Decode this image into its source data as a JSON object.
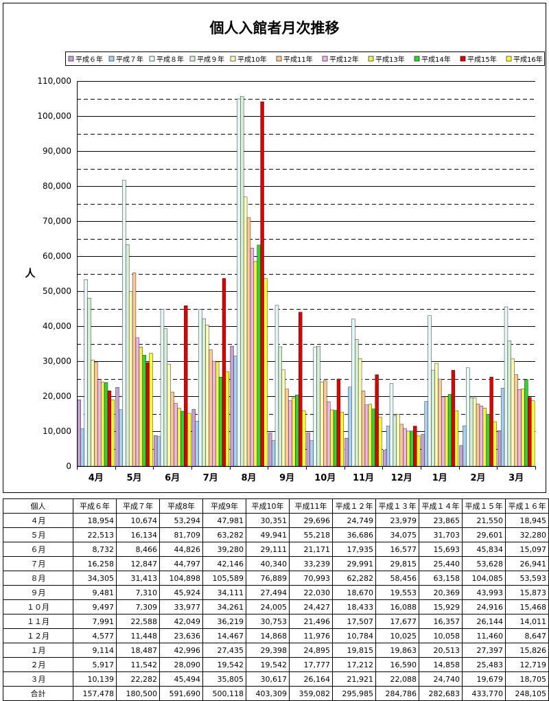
{
  "chart_data": {
    "type": "bar",
    "title": "個人入館者月次推移",
    "ylabel": "人",
    "xlabel": "",
    "ylim": [
      0,
      110000
    ],
    "yticks": [
      "0",
      "10,000",
      "20,000",
      "30,000",
      "40,000",
      "50,000",
      "60,000",
      "70,000",
      "80,000",
      "90,000",
      "100,000",
      "110,000"
    ],
    "grid": true,
    "legend_position": "top",
    "categories": [
      "4月",
      "5月",
      "6月",
      "7月",
      "8月",
      "9月",
      "10月",
      "11月",
      "12月",
      "1月",
      "2月",
      "3月"
    ],
    "series": [
      {
        "name": "平成６年",
        "color": "#c8a0d2",
        "values": [
          18954,
          22513,
          8732,
          16258,
          34305,
          9481,
          9497,
          7991,
          4577,
          9114,
          5917,
          10139
        ]
      },
      {
        "name": "平成７年",
        "color": "#a8d0f0",
        "values": [
          10674,
          16134,
          8466,
          12847,
          31413,
          7310,
          7309,
          22588,
          11448,
          18487,
          11542,
          22282
        ]
      },
      {
        "name": "平成８年",
        "color": "#e6f7f7",
        "values": [
          53294,
          81709,
          44826,
          44797,
          104898,
          45924,
          33977,
          42049,
          23636,
          42996,
          28090,
          45494
        ]
      },
      {
        "name": "平成９年",
        "color": "#d6f0d6",
        "values": [
          47981,
          63282,
          39280,
          42146,
          105589,
          34111,
          34261,
          36219,
          14467,
          27435,
          19542,
          35805
        ]
      },
      {
        "name": "平成10年",
        "color": "#fafab4",
        "values": [
          30351,
          49941,
          29111,
          40340,
          76889,
          27494,
          24005,
          30753,
          14868,
          29398,
          19542,
          30617
        ]
      },
      {
        "name": "平成11年",
        "color": "#fac896",
        "values": [
          29696,
          55218,
          21171,
          33239,
          70993,
          22030,
          24427,
          21496,
          11976,
          24895,
          17777,
          26164
        ]
      },
      {
        "name": "平成12年",
        "color": "#f0b4e6",
        "values": [
          24749,
          36686,
          17935,
          29991,
          62282,
          18670,
          18433,
          17507,
          10784,
          19815,
          17212,
          21921
        ]
      },
      {
        "name": "平成13年",
        "color": "#f0f050",
        "values": [
          23979,
          34075,
          16577,
          29815,
          58456,
          19553,
          16088,
          17677,
          10025,
          19863,
          16590,
          22088
        ]
      },
      {
        "name": "平成14年",
        "color": "#32d232",
        "values": [
          23865,
          31703,
          15693,
          25440,
          63158,
          20369,
          15929,
          16357,
          10058,
          20513,
          14858,
          24740
        ]
      },
      {
        "name": "平成15年",
        "color": "#dc0000",
        "values": [
          21550,
          29601,
          45834,
          53628,
          104085,
          43993,
          24916,
          26144,
          11460,
          27397,
          25483,
          19679
        ]
      },
      {
        "name": "平成16年",
        "color": "#ffff32",
        "values": [
          18945,
          32280,
          15097,
          26941,
          53593,
          15873,
          15468,
          14011,
          8647,
          15826,
          12719,
          18705
        ]
      }
    ]
  },
  "table": {
    "corner": "個人",
    "headers": [
      "平成６年",
      "平成７年",
      "平成8年",
      "平成9年",
      "平成10年",
      "平成11年",
      "平成１２年",
      "平成１３年",
      "平成１４年",
      "平成１５年",
      "平成１６年"
    ],
    "rows": [
      {
        "label": "４月",
        "cells": [
          "18,954",
          "10,674",
          "53,294",
          "47,981",
          "30,351",
          "29,696",
          "24,749",
          "23,979",
          "23,865",
          "21,550",
          "18,945"
        ]
      },
      {
        "label": "５月",
        "cells": [
          "22,513",
          "16,134",
          "81,709",
          "63,282",
          "49,941",
          "55,218",
          "36,686",
          "34,075",
          "31,703",
          "29,601",
          "32,280"
        ]
      },
      {
        "label": "６月",
        "cells": [
          "8,732",
          "8,466",
          "44,826",
          "39,280",
          "29,111",
          "21,171",
          "17,935",
          "16,577",
          "15,693",
          "45,834",
          "15,097"
        ]
      },
      {
        "label": "７月",
        "cells": [
          "16,258",
          "12,847",
          "44,797",
          "42,146",
          "40,340",
          "33,239",
          "29,991",
          "29,815",
          "25,440",
          "53,628",
          "26,941"
        ]
      },
      {
        "label": "８月",
        "cells": [
          "34,305",
          "31,413",
          "104,898",
          "105,589",
          "76,889",
          "70,993",
          "62,282",
          "58,456",
          "63,158",
          "104,085",
          "53,593"
        ]
      },
      {
        "label": "９月",
        "cells": [
          "9,481",
          "7,310",
          "45,924",
          "34,111",
          "27,494",
          "22,030",
          "18,670",
          "19,553",
          "20,369",
          "43,993",
          "15,873"
        ]
      },
      {
        "label": "１０月",
        "cells": [
          "9,497",
          "7,309",
          "33,977",
          "34,261",
          "24,005",
          "24,427",
          "18,433",
          "16,088",
          "15,929",
          "24,916",
          "15,468"
        ]
      },
      {
        "label": "１１月",
        "cells": [
          "7,991",
          "22,588",
          "42,049",
          "36,219",
          "30,753",
          "21,496",
          "17,507",
          "17,677",
          "16,357",
          "26,144",
          "14,011"
        ]
      },
      {
        "label": "１２月",
        "cells": [
          "4,577",
          "11,448",
          "23,636",
          "14,467",
          "14,868",
          "11,976",
          "10,784",
          "10,025",
          "10,058",
          "11,460",
          "8,647"
        ]
      },
      {
        "label": "１月",
        "cells": [
          "9,114",
          "18,487",
          "42,996",
          "27,435",
          "29,398",
          "24,895",
          "19,815",
          "19,863",
          "20,513",
          "27,397",
          "15,826"
        ]
      },
      {
        "label": "２月",
        "cells": [
          "5,917",
          "11,542",
          "28,090",
          "19,542",
          "19,542",
          "17,777",
          "17,212",
          "16,590",
          "14,858",
          "25,483",
          "12,719"
        ]
      },
      {
        "label": "３月",
        "cells": [
          "10,139",
          "22,282",
          "45,494",
          "35,805",
          "30,617",
          "26,164",
          "21,921",
          "22,088",
          "24,740",
          "19,679",
          "18,705"
        ]
      },
      {
        "label": "合計",
        "cells": [
          "157,478",
          "180,500",
          "591,690",
          "500,118",
          "403,309",
          "359,082",
          "295,985",
          "284,786",
          "282,683",
          "433,770",
          "248,105"
        ]
      }
    ]
  }
}
